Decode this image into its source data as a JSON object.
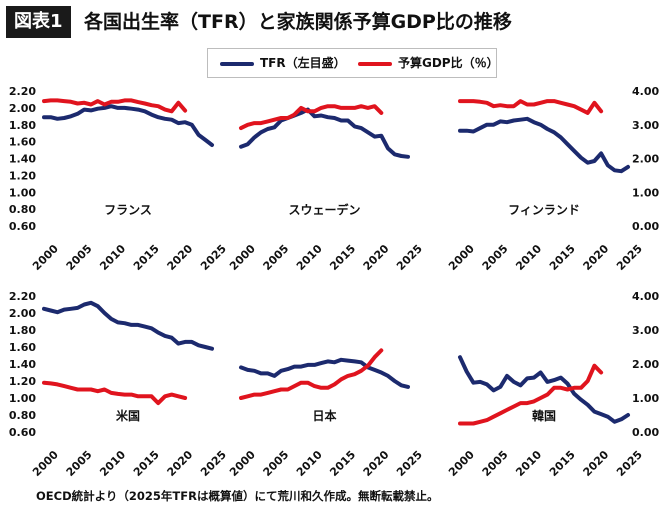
{
  "header": {
    "badge": "図表1",
    "title": "各国出生率（TFR）と家族関係予算GDP比の推移"
  },
  "legend": {
    "tfr": "TFR（左目盛）",
    "budget": "予算GDP比（％）"
  },
  "footer": {
    "note": "OECD統計より（2025年TFRは概算値）にて荒川和久作成。無断転載禁止。"
  },
  "colors": {
    "tfr": "#1c2a6e",
    "budget": "#e0141e"
  },
  "chart_data": [
    {
      "type": "line",
      "label": "フランス",
      "x_ticks": [
        "2000",
        "2005",
        "2010",
        "2015",
        "2020",
        "2025"
      ],
      "left_ticks": [
        "2.20",
        "2.00",
        "1.80",
        "1.60",
        "1.40",
        "1.20",
        "1.00",
        "0.80",
        "0.60"
      ],
      "right_ticks": [],
      "ylim_left": [
        0.6,
        2.2
      ],
      "series": [
        {
          "key": "tfr",
          "x": [
            2000,
            2001,
            2002,
            2003,
            2004,
            2005,
            2006,
            2007,
            2008,
            2009,
            2010,
            2011,
            2012,
            2013,
            2014,
            2015,
            2016,
            2017,
            2018,
            2019,
            2020,
            2021,
            2022,
            2023,
            2024,
            2025
          ],
          "values": [
            1.89,
            1.89,
            1.87,
            1.88,
            1.9,
            1.93,
            1.98,
            1.97,
            1.99,
            2.0,
            2.02,
            2.0,
            2.0,
            1.99,
            1.98,
            1.96,
            1.92,
            1.89,
            1.87,
            1.86,
            1.82,
            1.83,
            1.8,
            1.68,
            1.62,
            1.56
          ]
        },
        {
          "key": "budget",
          "x": [
            2000,
            2001,
            2002,
            2003,
            2004,
            2005,
            2006,
            2007,
            2008,
            2009,
            2010,
            2011,
            2012,
            2013,
            2014,
            2015,
            2016,
            2017,
            2018,
            2019,
            2020,
            2021
          ],
          "values": [
            3.7,
            3.72,
            3.72,
            3.7,
            3.68,
            3.63,
            3.65,
            3.6,
            3.7,
            3.6,
            3.68,
            3.68,
            3.72,
            3.72,
            3.67,
            3.63,
            3.58,
            3.55,
            3.45,
            3.4,
            3.65,
            3.42
          ]
        }
      ]
    },
    {
      "type": "line",
      "label": "スウェーデン",
      "x_ticks": [
        "2000",
        "2005",
        "2010",
        "2015",
        "2020",
        "2025"
      ],
      "left_ticks": [],
      "right_ticks": [],
      "ylim_left": [
        0.6,
        2.2
      ],
      "series": [
        {
          "key": "tfr",
          "x": [
            2000,
            2001,
            2002,
            2003,
            2004,
            2005,
            2006,
            2007,
            2008,
            2009,
            2010,
            2011,
            2012,
            2013,
            2014,
            2015,
            2016,
            2017,
            2018,
            2019,
            2020,
            2021,
            2022,
            2023,
            2024,
            2025
          ],
          "values": [
            1.54,
            1.57,
            1.65,
            1.71,
            1.75,
            1.77,
            1.85,
            1.88,
            1.91,
            1.94,
            1.98,
            1.9,
            1.91,
            1.89,
            1.88,
            1.85,
            1.85,
            1.78,
            1.76,
            1.71,
            1.66,
            1.67,
            1.52,
            1.45,
            1.43,
            1.42
          ]
        },
        {
          "key": "budget",
          "x": [
            2000,
            2001,
            2002,
            2003,
            2004,
            2005,
            2006,
            2007,
            2008,
            2009,
            2010,
            2011,
            2012,
            2013,
            2014,
            2015,
            2016,
            2017,
            2018,
            2019,
            2020,
            2021
          ],
          "values": [
            2.9,
            3.0,
            3.05,
            3.05,
            3.1,
            3.15,
            3.2,
            3.2,
            3.3,
            3.5,
            3.4,
            3.4,
            3.5,
            3.55,
            3.55,
            3.5,
            3.5,
            3.5,
            3.55,
            3.5,
            3.55,
            3.35
          ]
        }
      ]
    },
    {
      "type": "line",
      "label": "フィンランド",
      "x_ticks": [
        "2000",
        "2005",
        "2010",
        "2015",
        "2020",
        "2025"
      ],
      "left_ticks": [],
      "right_ticks": [
        "4.00",
        "3.00",
        "2.00",
        "1.00",
        "0.00"
      ],
      "ylim_right": [
        0,
        4
      ],
      "series": [
        {
          "key": "tfr",
          "x": [
            2000,
            2001,
            2002,
            2003,
            2004,
            2005,
            2006,
            2007,
            2008,
            2009,
            2010,
            2011,
            2012,
            2013,
            2014,
            2015,
            2016,
            2017,
            2018,
            2019,
            2020,
            2021,
            2022,
            2023,
            2024,
            2025
          ],
          "values": [
            1.73,
            1.73,
            1.72,
            1.76,
            1.8,
            1.8,
            1.84,
            1.83,
            1.85,
            1.86,
            1.87,
            1.83,
            1.8,
            1.75,
            1.71,
            1.65,
            1.57,
            1.49,
            1.41,
            1.35,
            1.37,
            1.46,
            1.32,
            1.26,
            1.25,
            1.3
          ]
        },
        {
          "key": "budget",
          "x": [
            2000,
            2001,
            2002,
            2003,
            2004,
            2005,
            2006,
            2007,
            2008,
            2009,
            2010,
            2011,
            2012,
            2013,
            2014,
            2015,
            2016,
            2017,
            2018,
            2019,
            2020,
            2021
          ],
          "values": [
            3.7,
            3.7,
            3.7,
            3.68,
            3.65,
            3.55,
            3.58,
            3.55,
            3.55,
            3.7,
            3.6,
            3.6,
            3.65,
            3.7,
            3.7,
            3.65,
            3.6,
            3.55,
            3.45,
            3.35,
            3.65,
            3.4
          ]
        }
      ]
    },
    {
      "type": "line",
      "label": "米国",
      "x_ticks": [
        "2000",
        "2005",
        "2010",
        "2015",
        "2020",
        "2025"
      ],
      "left_ticks": [
        "2.20",
        "2.00",
        "1.80",
        "1.60",
        "1.40",
        "1.20",
        "1.00",
        "0.80",
        "0.60"
      ],
      "right_ticks": [],
      "ylim_left": [
        0.6,
        2.2
      ],
      "series": [
        {
          "key": "tfr",
          "x": [
            2000,
            2001,
            2002,
            2003,
            2004,
            2005,
            2006,
            2007,
            2008,
            2009,
            2010,
            2011,
            2012,
            2013,
            2014,
            2015,
            2016,
            2017,
            2018,
            2019,
            2020,
            2021,
            2022,
            2023,
            2024,
            2025
          ],
          "values": [
            2.05,
            2.03,
            2.01,
            2.04,
            2.05,
            2.06,
            2.1,
            2.12,
            2.08,
            2.0,
            1.93,
            1.89,
            1.88,
            1.86,
            1.86,
            1.84,
            1.82,
            1.77,
            1.73,
            1.71,
            1.64,
            1.66,
            1.66,
            1.62,
            1.6,
            1.58
          ]
        },
        {
          "key": "budget",
          "x": [
            2000,
            2001,
            2002,
            2003,
            2004,
            2005,
            2006,
            2007,
            2008,
            2009,
            2010,
            2011,
            2012,
            2013,
            2014,
            2015,
            2016,
            2017,
            2018,
            2019,
            2020,
            2021
          ],
          "values": [
            1.45,
            1.43,
            1.4,
            1.35,
            1.3,
            1.25,
            1.25,
            1.25,
            1.2,
            1.25,
            1.15,
            1.12,
            1.1,
            1.1,
            1.05,
            1.05,
            1.05,
            0.85,
            1.05,
            1.1,
            1.05,
            1.0
          ]
        }
      ]
    },
    {
      "type": "line",
      "label": "日本",
      "x_ticks": [
        "2000",
        "2005",
        "2010",
        "2015",
        "2020",
        "2025"
      ],
      "left_ticks": [],
      "right_ticks": [],
      "ylim_left": [
        0.6,
        2.2
      ],
      "series": [
        {
          "key": "tfr",
          "x": [
            2000,
            2001,
            2002,
            2003,
            2004,
            2005,
            2006,
            2007,
            2008,
            2009,
            2010,
            2011,
            2012,
            2013,
            2014,
            2015,
            2016,
            2017,
            2018,
            2019,
            2020,
            2021,
            2022,
            2023,
            2024,
            2025
          ],
          "values": [
            1.36,
            1.33,
            1.32,
            1.29,
            1.29,
            1.26,
            1.32,
            1.34,
            1.37,
            1.37,
            1.39,
            1.39,
            1.41,
            1.43,
            1.42,
            1.45,
            1.44,
            1.43,
            1.42,
            1.36,
            1.33,
            1.3,
            1.26,
            1.2,
            1.15,
            1.13
          ]
        },
        {
          "key": "budget",
          "x": [
            2000,
            2001,
            2002,
            2003,
            2004,
            2005,
            2006,
            2007,
            2008,
            2009,
            2010,
            2011,
            2012,
            2013,
            2014,
            2015,
            2016,
            2017,
            2018,
            2019,
            2020,
            2021
          ],
          "values": [
            1.0,
            1.05,
            1.1,
            1.1,
            1.15,
            1.2,
            1.25,
            1.25,
            1.35,
            1.45,
            1.45,
            1.35,
            1.3,
            1.3,
            1.4,
            1.55,
            1.65,
            1.7,
            1.8,
            1.95,
            2.2,
            2.4
          ]
        }
      ]
    },
    {
      "type": "line",
      "label": "韓国",
      "x_ticks": [
        "2000",
        "2005",
        "2010",
        "2015",
        "2020",
        "2025"
      ],
      "left_ticks": [],
      "right_ticks": [
        "4.00",
        "3.00",
        "2.00",
        "1.00",
        "0.00"
      ],
      "ylim_right": [
        0,
        4
      ],
      "series": [
        {
          "key": "tfr",
          "x": [
            2000,
            2001,
            2002,
            2003,
            2004,
            2005,
            2006,
            2007,
            2008,
            2009,
            2010,
            2011,
            2012,
            2013,
            2014,
            2015,
            2016,
            2017,
            2018,
            2019,
            2020,
            2021,
            2022,
            2023,
            2024,
            2025
          ],
          "values": [
            1.48,
            1.31,
            1.18,
            1.19,
            1.16,
            1.09,
            1.13,
            1.26,
            1.19,
            1.15,
            1.23,
            1.24,
            1.3,
            1.19,
            1.21,
            1.24,
            1.17,
            1.05,
            0.98,
            0.92,
            0.84,
            0.81,
            0.78,
            0.72,
            0.75,
            0.8
          ]
        },
        {
          "key": "budget",
          "x": [
            2000,
            2001,
            2002,
            2003,
            2004,
            2005,
            2006,
            2007,
            2008,
            2009,
            2010,
            2011,
            2012,
            2013,
            2014,
            2015,
            2016,
            2017,
            2018,
            2019,
            2020,
            2021
          ],
          "values": [
            0.25,
            0.25,
            0.25,
            0.3,
            0.35,
            0.45,
            0.55,
            0.65,
            0.75,
            0.85,
            0.85,
            0.9,
            1.0,
            1.1,
            1.3,
            1.3,
            1.25,
            1.3,
            1.3,
            1.5,
            1.95,
            1.75
          ]
        }
      ]
    }
  ]
}
